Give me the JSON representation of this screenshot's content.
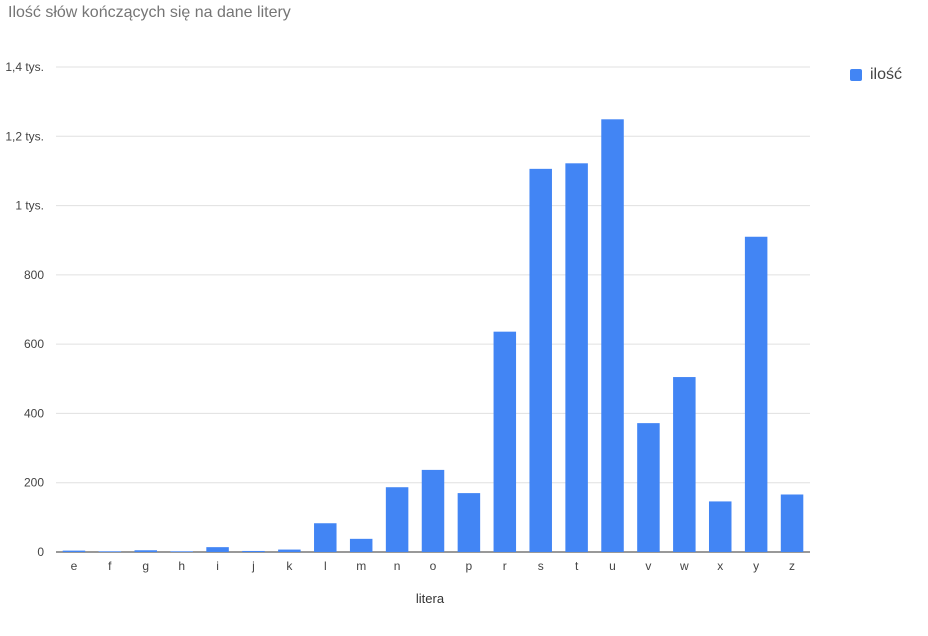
{
  "chart_data": {
    "type": "bar",
    "title": "Ilość słów kończących się na dane litery",
    "xlabel": "litera",
    "ylabel": "",
    "categories": [
      "e",
      "f",
      "g",
      "h",
      "i",
      "j",
      "k",
      "l",
      "m",
      "n",
      "o",
      "p",
      "r",
      "s",
      "t",
      "u",
      "v",
      "w",
      "x",
      "y",
      "z"
    ],
    "series": [
      {
        "name": "ilość",
        "values": [
          4,
          2,
          5,
          2,
          14,
          3,
          7,
          83,
          38,
          187,
          237,
          170,
          636,
          1106,
          1122,
          1249,
          372,
          505,
          146,
          910,
          166
        ]
      }
    ],
    "ylim": [
      0,
      1400
    ],
    "yticks": [
      0,
      200,
      400,
      600,
      800,
      1000,
      1200,
      1400
    ],
    "ytick_labels": [
      "0",
      "200",
      "400",
      "600",
      "800",
      "1 tys.",
      "1,2 tys.",
      "1,4 tys."
    ],
    "grid": true,
    "legend_position": "top-right",
    "colors": {
      "bar": "#4285f4",
      "grid": "#e0e0e0",
      "axis": "#333333",
      "tick_text": "#444444",
      "title": "#757575"
    }
  }
}
